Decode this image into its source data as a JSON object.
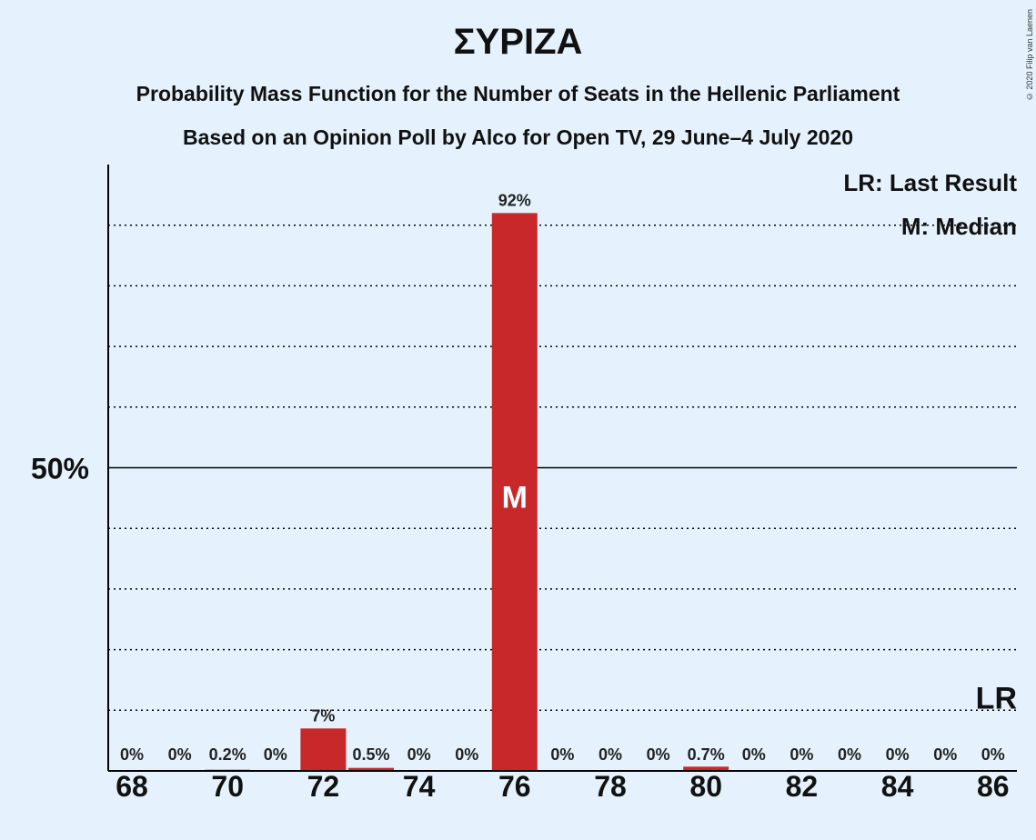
{
  "chart_data": {
    "type": "bar",
    "title": "ΣΥΡΙΖΑ",
    "subtitle_lines": [
      "Probability Mass Function for the Number of Seats in the Hellenic Parliament",
      "Based on an Opinion Poll by Alco for Open TV, 29 June–4 July 2020"
    ],
    "copyright": "© 2020 Filip van Laenen",
    "categories": [
      68,
      69,
      70,
      71,
      72,
      73,
      74,
      75,
      76,
      77,
      78,
      79,
      80,
      81,
      82,
      83,
      84,
      85,
      86
    ],
    "values": [
      0,
      0,
      0.2,
      0,
      7,
      0.5,
      0,
      0,
      92,
      0,
      0,
      0,
      0.7,
      0,
      0,
      0,
      0,
      0,
      0
    ],
    "value_labels": [
      "0%",
      "0%",
      "0.2%",
      "0%",
      "7%",
      "0.5%",
      "0%",
      "0%",
      "92%",
      "0%",
      "0%",
      "0%",
      "0.7%",
      "0%",
      "0%",
      "0%",
      "0%",
      "0%",
      "0%"
    ],
    "x_tick_labels": [
      "68",
      "70",
      "72",
      "74",
      "76",
      "78",
      "80",
      "82",
      "84",
      "86"
    ],
    "y_tick_label": "50%",
    "y_tick_value": 50,
    "ylim": [
      0,
      100
    ],
    "grid": "dotted every 10%",
    "median_seat": 76,
    "median_mark": "M",
    "last_result_mark": "LR",
    "last_result_seat": 86,
    "last_result_value": 10,
    "legend": [
      "LR: Last Result",
      "M: Median"
    ],
    "legend_position": "top-right",
    "colors": {
      "bar": "#c8282a",
      "background": "#e5f2fd",
      "grid": "#000000"
    }
  }
}
